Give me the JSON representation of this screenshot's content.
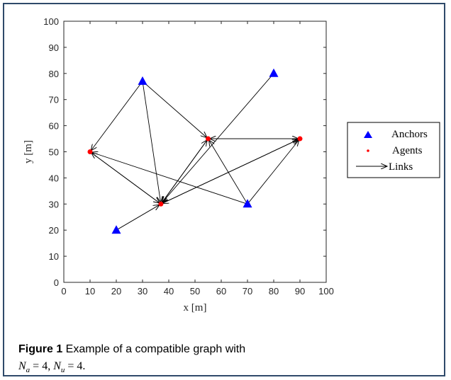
{
  "chart_data": {
    "type": "scatter",
    "xlabel": "x [m]",
    "ylabel": "y [m]",
    "xlim": [
      0,
      100
    ],
    "ylim": [
      0,
      100
    ],
    "xticks": [
      0,
      10,
      20,
      30,
      40,
      50,
      60,
      70,
      80,
      90,
      100
    ],
    "yticks": [
      0,
      10,
      20,
      30,
      40,
      50,
      60,
      70,
      80,
      90,
      100
    ],
    "grid": false,
    "legend_position": "right",
    "series": [
      {
        "name": "Anchors",
        "marker": "triangle",
        "color": "#0000ff",
        "points": [
          [
            20,
            20
          ],
          [
            30,
            77
          ],
          [
            70,
            30
          ],
          [
            80,
            80
          ]
        ]
      },
      {
        "name": "Agents",
        "marker": "dot",
        "color": "#ff0000",
        "points": [
          [
            10,
            50
          ],
          [
            37,
            30
          ],
          [
            55,
            55
          ],
          [
            90,
            55
          ]
        ]
      },
      {
        "name": "Links",
        "marker": "arrow",
        "color": "#000000",
        "edges": [
          [
            [
              20,
              20
            ],
            [
              37,
              30
            ]
          ],
          [
            [
              30,
              77
            ],
            [
              10,
              50
            ]
          ],
          [
            [
              30,
              77
            ],
            [
              37,
              30
            ]
          ],
          [
            [
              30,
              77
            ],
            [
              55,
              55
            ]
          ],
          [
            [
              80,
              80
            ],
            [
              37,
              30
            ]
          ],
          [
            [
              70,
              30
            ],
            [
              10,
              50
            ]
          ],
          [
            [
              70,
              30
            ],
            [
              90,
              55
            ]
          ],
          [
            [
              70,
              30
            ],
            [
              55,
              55
            ]
          ],
          [
            [
              10,
              50
            ],
            [
              37,
              30
            ]
          ],
          [
            [
              37,
              30
            ],
            [
              10,
              50
            ]
          ],
          [
            [
              55,
              55
            ],
            [
              37,
              30
            ]
          ],
          [
            [
              37,
              30
            ],
            [
              55,
              55
            ]
          ],
          [
            [
              90,
              55
            ],
            [
              37,
              30
            ]
          ],
          [
            [
              37,
              30
            ],
            [
              90,
              55
            ]
          ],
          [
            [
              55,
              55
            ],
            [
              90,
              55
            ]
          ],
          [
            [
              90,
              55
            ],
            [
              55,
              55
            ]
          ]
        ]
      }
    ]
  },
  "caption": {
    "label": "Figure 1",
    "text": " Example of a compatible graph with",
    "math_line": "N_a = 4, N_u = 4.",
    "math_html_parts": [
      "N",
      "a",
      " = 4, ",
      "N",
      "u",
      " = 4."
    ]
  }
}
